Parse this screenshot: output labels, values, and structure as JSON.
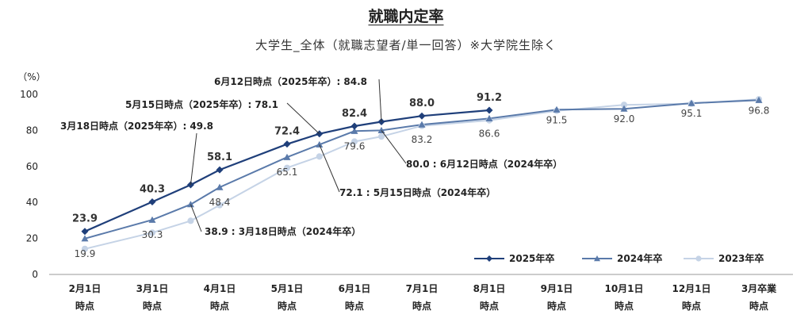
{
  "chart_data": {
    "type": "line",
    "title": "就職内定率",
    "subtitle": "大学生_全体（就職志望者/単一回答）※大学院生除く",
    "ylabel": "（%）",
    "ylim": [
      0,
      100
    ],
    "yticks": [
      0,
      20,
      40,
      60,
      80,
      100
    ],
    "categories": [
      [
        "2月1日",
        "時点"
      ],
      [
        "3月1日",
        "時点"
      ],
      [
        "4月1日",
        "時点"
      ],
      [
        "5月1日",
        "時点"
      ],
      [
        "6月1日",
        "時点"
      ],
      [
        "7月1日",
        "時点"
      ],
      [
        "8月1日",
        "時点"
      ],
      [
        "9月1日",
        "時点"
      ],
      [
        "10月1日",
        "時点"
      ],
      [
        "12月1日",
        "時点"
      ],
      [
        "3月卒業",
        "時点"
      ]
    ],
    "x": [
      0,
      1,
      1.44,
      2,
      3,
      3.48,
      4,
      4.37,
      5,
      6,
      7,
      8,
      9,
      10
    ],
    "series": [
      {
        "name": "2025年卒",
        "color": "#1f3f7a",
        "marker": "diamond",
        "points": [
          {
            "x": 0,
            "y": 23.9
          },
          {
            "x": 1,
            "y": 40.3
          },
          {
            "x": 1.57,
            "y": 49.8
          },
          {
            "x": 2,
            "y": 58.1
          },
          {
            "x": 3,
            "y": 72.4
          },
          {
            "x": 3.48,
            "y": 78.1
          },
          {
            "x": 4,
            "y": 82.4
          },
          {
            "x": 4.4,
            "y": 84.8
          },
          {
            "x": 5,
            "y": 88.0
          },
          {
            "x": 6,
            "y": 91.2
          }
        ]
      },
      {
        "name": "2024年卒",
        "color": "#5a7aaa",
        "marker": "triangle",
        "points": [
          {
            "x": 0,
            "y": 19.9
          },
          {
            "x": 1,
            "y": 30.3
          },
          {
            "x": 1.57,
            "y": 38.9
          },
          {
            "x": 2,
            "y": 48.4
          },
          {
            "x": 3,
            "y": 65.1
          },
          {
            "x": 3.48,
            "y": 72.1
          },
          {
            "x": 4,
            "y": 79.6
          },
          {
            "x": 4.4,
            "y": 80.0
          },
          {
            "x": 5,
            "y": 83.2
          },
          {
            "x": 6,
            "y": 86.6
          },
          {
            "x": 7,
            "y": 91.5
          },
          {
            "x": 8,
            "y": 92.0
          },
          {
            "x": 9,
            "y": 95.1
          },
          {
            "x": 10,
            "y": 96.8
          }
        ]
      },
      {
        "name": "2023年卒",
        "color": "#c5d3e6",
        "marker": "circle",
        "points": [
          {
            "x": 0,
            "y": 14.2
          },
          {
            "x": 1,
            "y": 23.2
          },
          {
            "x": 1.57,
            "y": 29.8
          },
          {
            "x": 2,
            "y": 38.5
          },
          {
            "x": 3,
            "y": 59.2
          },
          {
            "x": 3.48,
            "y": 65.5
          },
          {
            "x": 4,
            "y": 73.8
          },
          {
            "x": 4.4,
            "y": 76.6
          },
          {
            "x": 5,
            "y": 82.5
          },
          {
            "x": 6,
            "y": 85.6
          },
          {
            "x": 7,
            "y": 90.9
          },
          {
            "x": 8,
            "y": 94.2
          },
          {
            "x": 9,
            "y": 94.9
          },
          {
            "x": 10,
            "y": 97.3
          }
        ]
      }
    ],
    "data_labels_2025": [
      {
        "x": 0,
        "text": "23.9"
      },
      {
        "x": 1,
        "text": "40.3"
      },
      {
        "x": 2,
        "text": "58.1"
      },
      {
        "x": 3,
        "text": "72.4"
      },
      {
        "x": 4,
        "text": "82.4"
      },
      {
        "x": 5,
        "text": "88.0"
      },
      {
        "x": 6,
        "text": "91.2"
      }
    ],
    "data_labels_2024": [
      {
        "x": 0,
        "text": "19.9"
      },
      {
        "x": 1,
        "text": "30.3"
      },
      {
        "x": 2,
        "text": "48.4"
      },
      {
        "x": 3,
        "text": "65.1"
      },
      {
        "x": 4,
        "text": "79.6"
      },
      {
        "x": 5,
        "text": "83.2"
      },
      {
        "x": 6,
        "text": "86.6"
      },
      {
        "x": 7,
        "text": "91.5"
      },
      {
        "x": 8,
        "text": "92.0"
      },
      {
        "x": 9,
        "text": "95.1"
      },
      {
        "x": 10,
        "text": "96.8"
      }
    ],
    "annotations": [
      {
        "series": "2025年卒",
        "x": 1.57,
        "text": "3月18日時点（2025年卒）: 49.8"
      },
      {
        "series": "2025年卒",
        "x": 3.48,
        "text": "5月15日時点（2025年卒）: 78.1"
      },
      {
        "series": "2025年卒",
        "x": 4.4,
        "text": "6月12日時点（2025年卒）: 84.8"
      },
      {
        "series": "2024年卒",
        "x": 1.57,
        "text": "38.9 : 3月18日時点（2024年卒）"
      },
      {
        "series": "2024年卒",
        "x": 3.48,
        "text": "72.1 : 5月15日時点（2024年卒）"
      },
      {
        "series": "2024年卒",
        "x": 4.4,
        "text": "80.0 : 6月12日時点（2024年卒）"
      }
    ],
    "legend_position": "bottom-right",
    "grid": false
  }
}
